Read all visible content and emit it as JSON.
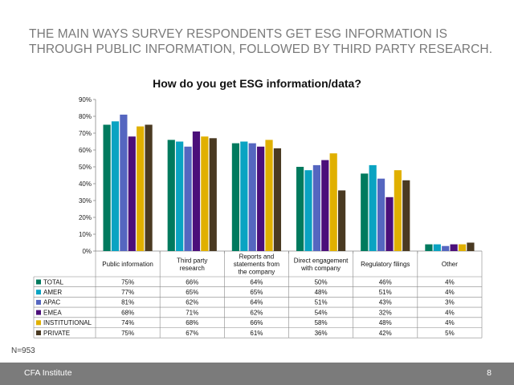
{
  "headline": "THE MAIN WAYS SURVEY RESPONDENTS GET ESG INFORMATION IS THROUGH PUBLIC INFORMATION, FOLLOWED BY THIRD PARTY RESEARCH.",
  "sample_size": "N=953",
  "footer": {
    "brand": "CFA Institute",
    "page_number": "8"
  },
  "chart_data": {
    "type": "bar",
    "title": "How do you get ESG information/data?",
    "xlabel": "",
    "ylabel": "",
    "ylim": [
      0,
      90
    ],
    "yticks": [
      "0%",
      "10%",
      "20%",
      "30%",
      "40%",
      "50%",
      "60%",
      "70%",
      "80%",
      "90%"
    ],
    "grid": false,
    "legend": "table-below",
    "categories": [
      [
        "Public information"
      ],
      [
        "Third party",
        "research"
      ],
      [
        "Reports and",
        "statements from",
        "the company"
      ],
      [
        "Direct engagement",
        "with company"
      ],
      [
        "Regulatory filings"
      ],
      [
        "Other"
      ]
    ],
    "series": [
      {
        "name": "TOTAL",
        "color": "#007a5e",
        "values": [
          75,
          66,
          64,
          50,
          46,
          4
        ]
      },
      {
        "name": "AMER",
        "color": "#0aa3c2",
        "values": [
          77,
          65,
          65,
          48,
          51,
          4
        ]
      },
      {
        "name": "APAC",
        "color": "#5566c0",
        "values": [
          81,
          62,
          64,
          51,
          43,
          3
        ]
      },
      {
        "name": "EMEA",
        "color": "#4b0f7a",
        "values": [
          68,
          71,
          62,
          54,
          32,
          4
        ]
      },
      {
        "name": "INSTITUTIONAL",
        "color": "#e0b000",
        "values": [
          74,
          68,
          66,
          58,
          48,
          4
        ]
      },
      {
        "name": "PRIVATE",
        "color": "#4a3a22",
        "values": [
          75,
          67,
          61,
          36,
          42,
          5
        ]
      }
    ]
  }
}
